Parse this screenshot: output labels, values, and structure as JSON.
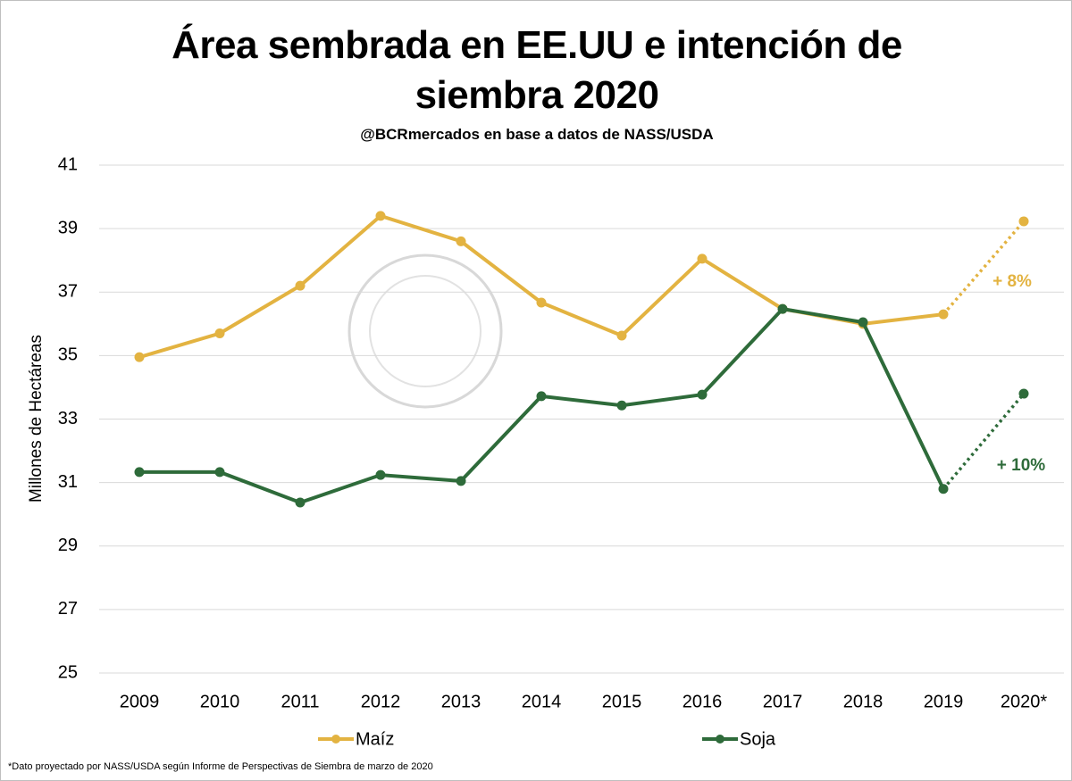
{
  "chart_data": {
    "type": "line",
    "title": "Área sembrada en EE.UU e intención de siembra 2020",
    "subtitle": "@BCRmercados en base a datos de  NASS/USDA",
    "ylabel": "Millones de Hectáreas",
    "footnote": "*Dato proyectado por NASS/USDA según Informe de Perspectivas de Siembra de marzo de 2020",
    "categories": [
      "2009",
      "2010",
      "2011",
      "2012",
      "2013",
      "2014",
      "2015",
      "2016",
      "2017",
      "2018",
      "2019",
      "2020*"
    ],
    "series": [
      {
        "name": "Maíz",
        "color": "#e3b341",
        "values": [
          34.95,
          35.7,
          37.2,
          39.4,
          38.6,
          36.67,
          35.63,
          38.05,
          36.47,
          36.0,
          36.3,
          39.23
        ]
      },
      {
        "name": "Soja",
        "color": "#2e6b3a",
        "values": [
          31.33,
          31.33,
          30.37,
          31.24,
          31.05,
          33.72,
          33.43,
          33.77,
          36.47,
          36.05,
          30.8,
          33.8
        ]
      }
    ],
    "dotted_last_segment": true,
    "annotations": [
      {
        "text": "+ 8%",
        "color": "#e3b341"
      },
      {
        "text": "+ 10%",
        "color": "#2e6b3a"
      }
    ],
    "ylim": [
      25,
      41
    ],
    "yticks": [
      25,
      27,
      29,
      31,
      33,
      35,
      37,
      39,
      41
    ],
    "grid": true,
    "legend": "bottom"
  }
}
